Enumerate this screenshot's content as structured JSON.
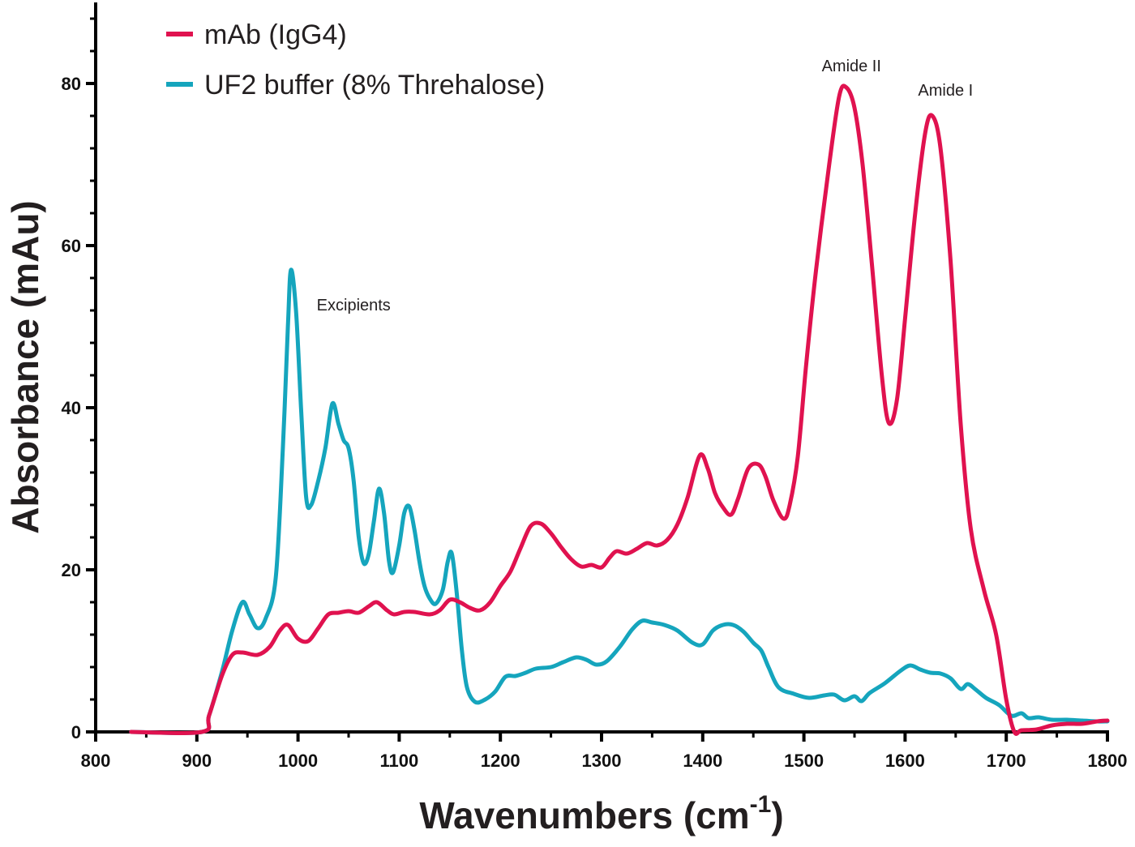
{
  "chart_data": {
    "type": "line",
    "xlabel": "Wavenumbers (cm",
    "xlabel_superscript": "-1",
    "xlabel_suffix": ")",
    "ylabel": "Absorbance (mAu)",
    "xlim": [
      800,
      1800
    ],
    "ylim": [
      0,
      90
    ],
    "x_ticks": [
      800,
      900,
      1000,
      1100,
      1200,
      1300,
      1400,
      1500,
      1600,
      1700,
      1800
    ],
    "y_ticks": [
      0,
      20,
      40,
      60,
      80
    ],
    "grid": false,
    "legend_position": "top-left",
    "series": [
      {
        "name": "mAb (IgG4)",
        "color": "#e0124f",
        "points": [
          [
            835,
            0
          ],
          [
            905,
            0
          ],
          [
            912,
            2
          ],
          [
            925,
            7
          ],
          [
            935,
            9.5
          ],
          [
            945,
            9.8
          ],
          [
            960,
            9.5
          ],
          [
            972,
            10.5
          ],
          [
            982,
            12.5
          ],
          [
            990,
            13.2
          ],
          [
            1000,
            11.5
          ],
          [
            1010,
            11.2
          ],
          [
            1020,
            12.8
          ],
          [
            1030,
            14.5
          ],
          [
            1040,
            14.7
          ],
          [
            1050,
            14.9
          ],
          [
            1060,
            14.7
          ],
          [
            1070,
            15.5
          ],
          [
            1078,
            16
          ],
          [
            1088,
            15
          ],
          [
            1095,
            14.5
          ],
          [
            1105,
            14.8
          ],
          [
            1115,
            14.8
          ],
          [
            1130,
            14.5
          ],
          [
            1140,
            15
          ],
          [
            1150,
            16.3
          ],
          [
            1160,
            16
          ],
          [
            1170,
            15.3
          ],
          [
            1180,
            15
          ],
          [
            1190,
            16
          ],
          [
            1200,
            18
          ],
          [
            1210,
            19.8
          ],
          [
            1220,
            22.7
          ],
          [
            1230,
            25.4
          ],
          [
            1240,
            25.7
          ],
          [
            1250,
            24.5
          ],
          [
            1260,
            22.8
          ],
          [
            1270,
            21.3
          ],
          [
            1280,
            20.4
          ],
          [
            1290,
            20.6
          ],
          [
            1300,
            20.3
          ],
          [
            1308,
            21.5
          ],
          [
            1315,
            22.3
          ],
          [
            1325,
            22
          ],
          [
            1335,
            22.6
          ],
          [
            1345,
            23.3
          ],
          [
            1355,
            23
          ],
          [
            1365,
            23.7
          ],
          [
            1375,
            25.6
          ],
          [
            1385,
            28.9
          ],
          [
            1397,
            34.1
          ],
          [
            1405,
            32.5
          ],
          [
            1412,
            29.5
          ],
          [
            1420,
            27.7
          ],
          [
            1428,
            26.8
          ],
          [
            1435,
            28.8
          ],
          [
            1445,
            32.5
          ],
          [
            1455,
            33
          ],
          [
            1462,
            31.5
          ],
          [
            1470,
            28.5
          ],
          [
            1480,
            26.3
          ],
          [
            1486,
            28
          ],
          [
            1494,
            34
          ],
          [
            1502,
            45
          ],
          [
            1512,
            57
          ],
          [
            1525,
            70
          ],
          [
            1535,
            78.5
          ],
          [
            1542,
            79.5
          ],
          [
            1550,
            77
          ],
          [
            1558,
            70
          ],
          [
            1567,
            58
          ],
          [
            1577,
            44
          ],
          [
            1584,
            38.1
          ],
          [
            1592,
            41
          ],
          [
            1600,
            51
          ],
          [
            1610,
            64
          ],
          [
            1620,
            74
          ],
          [
            1627,
            76
          ],
          [
            1635,
            72
          ],
          [
            1645,
            58
          ],
          [
            1655,
            38
          ],
          [
            1665,
            25
          ],
          [
            1678,
            17.5
          ],
          [
            1690,
            12
          ],
          [
            1700,
            4
          ],
          [
            1708,
            0
          ],
          [
            1715,
            0.2
          ],
          [
            1730,
            0.3
          ],
          [
            1745,
            0.8
          ],
          [
            1760,
            1
          ],
          [
            1775,
            1
          ],
          [
            1790,
            1.3
          ],
          [
            1800,
            1.4
          ]
        ]
      },
      {
        "name": "UF2 buffer (8% Threhalose)",
        "color": "#15a5bd",
        "points": [
          [
            835,
            0
          ],
          [
            905,
            0
          ],
          [
            912,
            2
          ],
          [
            925,
            7.5
          ],
          [
            935,
            12.5
          ],
          [
            945,
            16
          ],
          [
            952,
            14.5
          ],
          [
            960,
            12.8
          ],
          [
            968,
            14
          ],
          [
            978,
            19
          ],
          [
            985,
            35
          ],
          [
            990,
            50
          ],
          [
            993,
            57
          ],
          [
            998,
            52
          ],
          [
            1003,
            40
          ],
          [
            1008,
            29
          ],
          [
            1013,
            28
          ],
          [
            1020,
            31
          ],
          [
            1027,
            35
          ],
          [
            1034,
            40.5
          ],
          [
            1040,
            38
          ],
          [
            1045,
            36
          ],
          [
            1050,
            35
          ],
          [
            1055,
            31
          ],
          [
            1060,
            24
          ],
          [
            1065,
            20.8
          ],
          [
            1070,
            22
          ],
          [
            1075,
            26
          ],
          [
            1080,
            30
          ],
          [
            1085,
            27
          ],
          [
            1090,
            21
          ],
          [
            1094,
            19.7
          ],
          [
            1100,
            23
          ],
          [
            1105,
            27
          ],
          [
            1110,
            27.8
          ],
          [
            1115,
            25
          ],
          [
            1120,
            21
          ],
          [
            1125,
            18
          ],
          [
            1130,
            16.5
          ],
          [
            1136,
            15.8
          ],
          [
            1143,
            17.5
          ],
          [
            1148,
            21
          ],
          [
            1152,
            22
          ],
          [
            1157,
            17
          ],
          [
            1162,
            10
          ],
          [
            1167,
            5.5
          ],
          [
            1175,
            3.7
          ],
          [
            1185,
            4
          ],
          [
            1195,
            5
          ],
          [
            1205,
            6.8
          ],
          [
            1215,
            6.9
          ],
          [
            1225,
            7.3
          ],
          [
            1235,
            7.8
          ],
          [
            1250,
            8
          ],
          [
            1262,
            8.6
          ],
          [
            1275,
            9.2
          ],
          [
            1285,
            8.9
          ],
          [
            1295,
            8.3
          ],
          [
            1305,
            8.7
          ],
          [
            1318,
            10.5
          ],
          [
            1330,
            12.6
          ],
          [
            1340,
            13.7
          ],
          [
            1350,
            13.5
          ],
          [
            1362,
            13.2
          ],
          [
            1375,
            12.5
          ],
          [
            1390,
            11
          ],
          [
            1400,
            10.8
          ],
          [
            1410,
            12.5
          ],
          [
            1420,
            13.2
          ],
          [
            1430,
            13.2
          ],
          [
            1440,
            12.4
          ],
          [
            1450,
            11
          ],
          [
            1458,
            10
          ],
          [
            1465,
            8
          ],
          [
            1475,
            5.5
          ],
          [
            1490,
            4.7
          ],
          [
            1505,
            4.2
          ],
          [
            1520,
            4.5
          ],
          [
            1530,
            4.6
          ],
          [
            1540,
            3.9
          ],
          [
            1550,
            4.4
          ],
          [
            1557,
            3.8
          ],
          [
            1565,
            4.8
          ],
          [
            1580,
            6
          ],
          [
            1595,
            7.5
          ],
          [
            1605,
            8.2
          ],
          [
            1615,
            7.7
          ],
          [
            1625,
            7.3
          ],
          [
            1635,
            7.2
          ],
          [
            1645,
            6.6
          ],
          [
            1655,
            5.3
          ],
          [
            1662,
            5.9
          ],
          [
            1670,
            5.2
          ],
          [
            1680,
            4.2
          ],
          [
            1693,
            3.3
          ],
          [
            1705,
            2
          ],
          [
            1715,
            2.3
          ],
          [
            1722,
            1.7
          ],
          [
            1732,
            1.8
          ],
          [
            1745,
            1.5
          ],
          [
            1760,
            1.5
          ],
          [
            1775,
            1.4
          ],
          [
            1790,
            1.3
          ],
          [
            1800,
            1.3
          ]
        ]
      }
    ],
    "annotations": [
      {
        "text": "Excipients",
        "x": 1055,
        "y": 52
      },
      {
        "text": "Amide II",
        "x": 1547,
        "y": 81.5
      },
      {
        "text": "Amide I",
        "x": 1640,
        "y": 78.5
      }
    ]
  }
}
